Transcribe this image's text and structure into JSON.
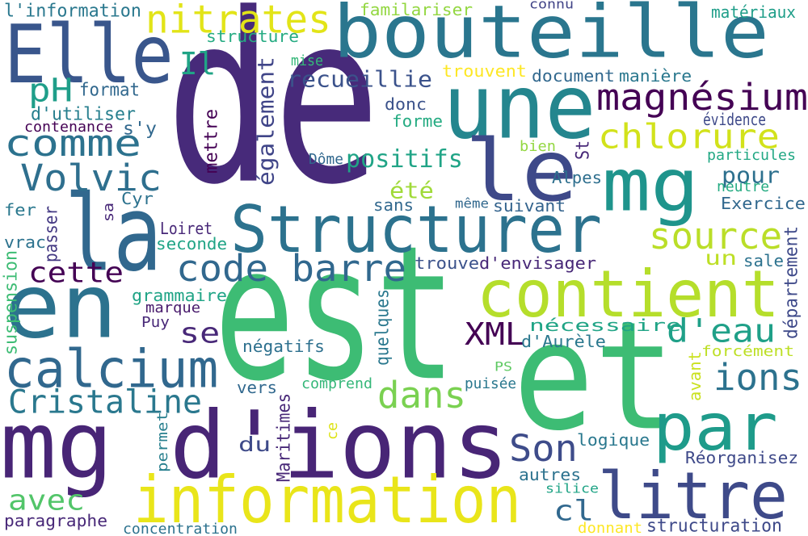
{
  "words": [
    {
      "text": "de",
      "color": "#472a7a"
    },
    {
      "text": "est",
      "color": "#3dbc74"
    },
    {
      "text": "et",
      "color": "#3dbc74"
    },
    {
      "text": "une",
      "color": "#24868e"
    },
    {
      "text": "bouteille",
      "color": "#2a768e"
    },
    {
      "text": "Elle",
      "color": "#39568c"
    },
    {
      "text": "mg d'ions",
      "color": "#482576"
    },
    {
      "text": "en",
      "color": "#2c728e"
    },
    {
      "text": "la",
      "color": "#31688e"
    },
    {
      "text": "le",
      "color": "#3e4989"
    },
    {
      "text": "mg",
      "color": "#1f948c"
    },
    {
      "text": "Structurer",
      "color": "#2c728e"
    },
    {
      "text": "contient",
      "color": "#b5de2b"
    },
    {
      "text": "information",
      "color": "#e9e51a"
    },
    {
      "text": "par",
      "color": "#1e9b8a"
    },
    {
      "text": "litre",
      "color": "#3e4a89"
    },
    {
      "text": "calcium",
      "color": "#31688e"
    },
    {
      "text": "magnésium",
      "color": "#440154"
    },
    {
      "text": "nitrates",
      "color": "#e2e418"
    },
    {
      "text": "chlorure",
      "color": "#d2e21b"
    },
    {
      "text": "comme",
      "color": "#2c728e"
    },
    {
      "text": "Volvic",
      "color": "#2e6f8e"
    },
    {
      "text": "code barre",
      "color": "#31688e"
    },
    {
      "text": "source",
      "color": "#bade28"
    },
    {
      "text": "ions",
      "color": "#2c728e"
    },
    {
      "text": "Son",
      "color": "#3e4c8a"
    },
    {
      "text": "dans",
      "color": "#7ad151"
    },
    {
      "text": "d'eau",
      "color": "#1fa088"
    },
    {
      "text": "Cristaline",
      "color": "#2a788e"
    },
    {
      "text": "XML",
      "color": "#440154"
    },
    {
      "text": "cette",
      "color": "#440154"
    },
    {
      "text": "avec",
      "color": "#52c569"
    },
    {
      "text": "cl",
      "color": "#31688e"
    },
    {
      "text": "positifs",
      "color": "#20a486"
    },
    {
      "text": "pH",
      "color": "#1f9e89"
    },
    {
      "text": "recueillie",
      "color": "#3b528b"
    },
    {
      "text": "Il",
      "color": "#20a486"
    },
    {
      "text": "se",
      "color": "#482878"
    },
    {
      "text": "pour",
      "color": "#2d708e"
    },
    {
      "text": "un",
      "color": "#bddf26"
    },
    {
      "text": "également",
      "color": "#404588"
    },
    {
      "text": "été",
      "color": "#a0da39"
    },
    {
      "text": "du",
      "color": "#3e4a89"
    },
    {
      "text": "format",
      "color": "#31688e"
    },
    {
      "text": "d'utiliser",
      "color": "#277f8e"
    },
    {
      "text": "s'y",
      "color": "#31688e"
    },
    {
      "text": "contenance",
      "color": "#440154"
    },
    {
      "text": "l'information",
      "color": "#2a788e"
    },
    {
      "text": "familariser",
      "color": "#93d741"
    },
    {
      "text": "structure",
      "color": "#25ab82"
    },
    {
      "text": "mise",
      "color": "#35b779"
    },
    {
      "text": "trouvent",
      "color": "#fde725"
    },
    {
      "text": "document",
      "color": "#31688e"
    },
    {
      "text": "manière",
      "color": "#2a788e"
    },
    {
      "text": "donc",
      "color": "#3b528b"
    },
    {
      "text": "forme",
      "color": "#25ab82"
    },
    {
      "text": "évidence",
      "color": "#3e4989"
    },
    {
      "text": "connu",
      "color": "#414487"
    },
    {
      "text": "matériaux",
      "color": "#1f9e89"
    },
    {
      "text": "mettre",
      "color": "#440154"
    },
    {
      "text": "Dôme",
      "color": "#31688e"
    },
    {
      "text": "bien",
      "color": "#93d741"
    },
    {
      "text": "St",
      "color": "#482878"
    },
    {
      "text": "particules",
      "color": "#22a884"
    },
    {
      "text": "neutre",
      "color": "#25ab82"
    },
    {
      "text": "Alpes",
      "color": "#2e6f8e"
    },
    {
      "text": "Cyr",
      "color": "#2c728e"
    },
    {
      "text": "sa",
      "color": "#482878"
    },
    {
      "text": "sans",
      "color": "#31688e"
    },
    {
      "text": "même",
      "color": "#31688e"
    },
    {
      "text": "suivant",
      "color": "#33638d"
    },
    {
      "text": "Exercice",
      "color": "#31688e"
    },
    {
      "text": "fer",
      "color": "#2a788e"
    },
    {
      "text": "Loiret",
      "color": "#482878"
    },
    {
      "text": "vrac",
      "color": "#2c728e"
    },
    {
      "text": "passer",
      "color": "#443983"
    },
    {
      "text": "seconde",
      "color": "#20a486"
    },
    {
      "text": "trouve",
      "color": "#3b528b"
    },
    {
      "text": "d'envisager",
      "color": "#482878"
    },
    {
      "text": "sale",
      "color": "#2c728e"
    },
    {
      "text": "département",
      "color": "#3e4989"
    },
    {
      "text": "suspension",
      "color": "#3dbc74"
    },
    {
      "text": "grammaire",
      "color": "#20a486"
    },
    {
      "text": "marque",
      "color": "#481a6c"
    },
    {
      "text": "quelques",
      "color": "#2a788e"
    },
    {
      "text": "nécessaire",
      "color": "#20a486"
    },
    {
      "text": "d'Aurèle",
      "color": "#2a788e"
    },
    {
      "text": "Puy",
      "color": "#482878"
    },
    {
      "text": "négatifs",
      "color": "#2d708e"
    },
    {
      "text": "forcément",
      "color": "#bddf26"
    },
    {
      "text": "avant",
      "color": "#cae11f"
    },
    {
      "text": "PS",
      "color": "#5ec962"
    },
    {
      "text": "comprend",
      "color": "#35b779"
    },
    {
      "text": "vers",
      "color": "#31688e"
    },
    {
      "text": "puisée",
      "color": "#2a788e"
    },
    {
      "text": "Maritimes",
      "color": "#482878"
    },
    {
      "text": "permet",
      "color": "#277f8e"
    },
    {
      "text": "ce",
      "color": "#dde318"
    },
    {
      "text": "logique",
      "color": "#2a788e"
    },
    {
      "text": "Réorganisez",
      "color": "#3e4989"
    },
    {
      "text": "autres",
      "color": "#2c728e"
    },
    {
      "text": "silice",
      "color": "#20a486"
    },
    {
      "text": "paragraphe",
      "color": "#482878"
    },
    {
      "text": "concentration",
      "color": "#2c728e"
    },
    {
      "text": "donnant",
      "color": "#fde725"
    },
    {
      "text": "structuration",
      "color": "#3e4989"
    }
  ]
}
